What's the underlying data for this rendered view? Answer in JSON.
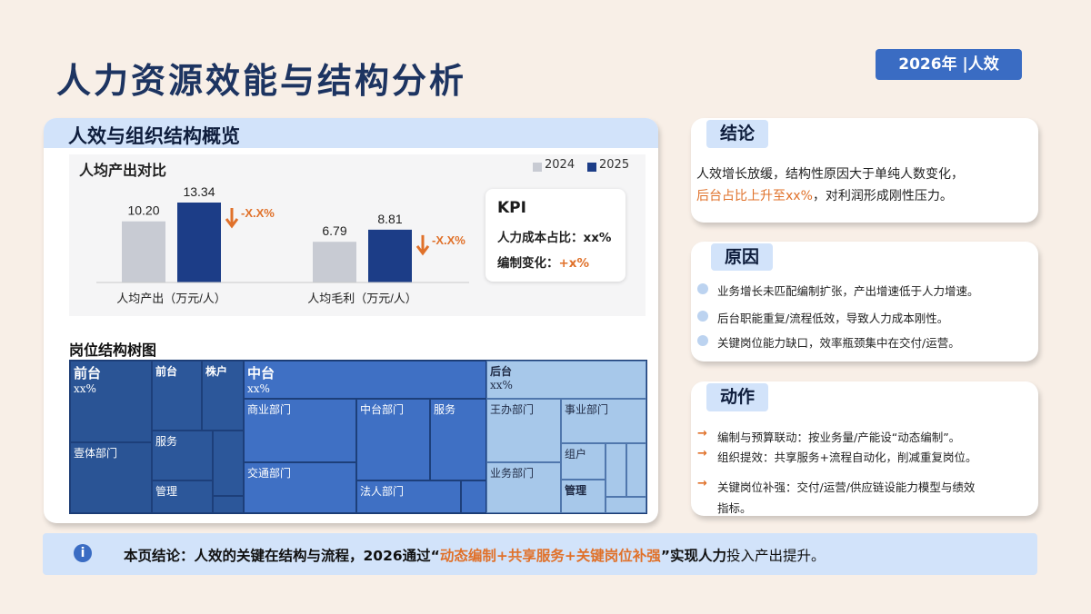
{
  "page": {
    "title": "人力资源效能与结构分析",
    "badge": "2026年 |人效"
  },
  "left_panel": {
    "title": "人效与组织结构概览",
    "kpi": {
      "title": "KPI",
      "row1_label": "人力成本占比：",
      "row1_value": "xx%",
      "row2_label": "编制变化：",
      "row2_value": "+x%"
    },
    "treemap_title": "岗位结构树图",
    "treemap": {
      "front": {
        "label": "前台",
        "value": "xx%"
      },
      "front_sub1": "前台",
      "front_sub2": "株户",
      "front_sub3": "壹体部门",
      "front_sub4": "服务",
      "front_sub5": "管理",
      "middle": {
        "label": "中台",
        "value": "xx%"
      },
      "mid_sub1": "商业部门",
      "mid_sub2": "中台部门",
      "mid_sub3": "服务",
      "mid_sub4": "交通部门",
      "mid_sub5": "法人部门",
      "back": {
        "label": "后台",
        "value": "xx%"
      },
      "back_sub1": "王办部门",
      "back_sub2": "事业部门",
      "back_sub3": "组户",
      "back_sub4": "业务部门",
      "back_sub5": "管理"
    }
  },
  "chart_data": {
    "type": "bar",
    "title": "人均产出对比",
    "categories": [
      "人均产出（万元/人）",
      "人均毛利（万元/人）"
    ],
    "series": [
      {
        "name": "2024",
        "values": [
          10.2,
          6.79
        ],
        "color": "#c8cbd3"
      },
      {
        "name": "2025",
        "values": [
          13.34,
          8.81
        ],
        "color": "#1c3d87"
      }
    ],
    "annotations": [
      "-X.X%",
      "-X.X%"
    ],
    "legend": "top-right"
  },
  "conclusion": {
    "tag": "结论",
    "line1": "人效增长放缓，结构性原因大于单纯人数变化，",
    "line2_highlight": "后台占比上升至xx%",
    "line2_rest": "，对利润形成刚性压力。"
  },
  "reasons": {
    "tag": "原因",
    "items": [
      "业务增长未匹配编制扩张，产出增速低于人力增速。",
      "后台职能重复/流程低效，导致人力成本刚性。",
      "关键岗位能力缺口，效率瓶颈集中在交付/运营。"
    ]
  },
  "actions": {
    "tag": "动作",
    "items": [
      "编制与预算联动：按业务量/产能设“动态编制”。",
      "组织提效：共享服务+流程自动化，削减重复岗位。",
      "关键岗位补强：交付/运营/供应链设能力模型与绩效",
      "指标。"
    ]
  },
  "bottom": {
    "icon": "i",
    "part1": "本页结论：人效的关键在结构与流程，2026通过“",
    "highlight": "动态编制+共享服务+关键岗位补强",
    "part2": "”实现人力",
    "part3": "投入产出提升。"
  }
}
